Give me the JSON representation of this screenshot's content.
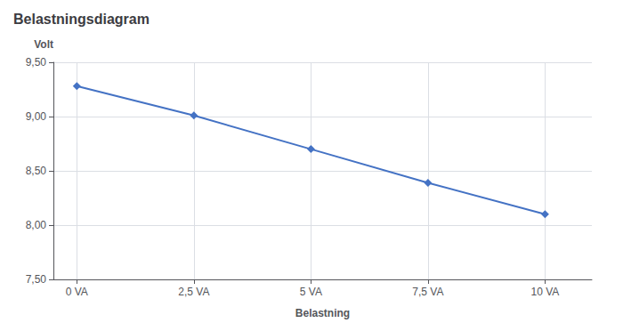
{
  "chart_data": {
    "type": "line",
    "title": "Belastningsdiagram",
    "xlabel": "Belastning",
    "ylabel": "Volt",
    "x": [
      0,
      2.5,
      5,
      7.5,
      10
    ],
    "values": [
      9.28,
      9.01,
      8.7,
      8.39,
      8.1
    ],
    "color": "#4472C4",
    "marker": "diamond",
    "xlim": [
      -0.5,
      11
    ],
    "xticks": [
      {
        "value": 0,
        "label": "0 VA"
      },
      {
        "value": 2.5,
        "label": "2,5 VA"
      },
      {
        "value": 5,
        "label": "5 VA"
      },
      {
        "value": 7.5,
        "label": "7,5 VA"
      },
      {
        "value": 10,
        "label": "10 VA"
      }
    ],
    "ylim": [
      7.5,
      9.5
    ],
    "yticks": [
      {
        "value": 7.5,
        "label": "7,50"
      },
      {
        "value": 8.0,
        "label": "8,00"
      },
      {
        "value": 8.5,
        "label": "8,50"
      },
      {
        "value": 9.0,
        "label": "9,00"
      },
      {
        "value": 9.5,
        "label": "9,50"
      }
    ],
    "grid": true
  }
}
